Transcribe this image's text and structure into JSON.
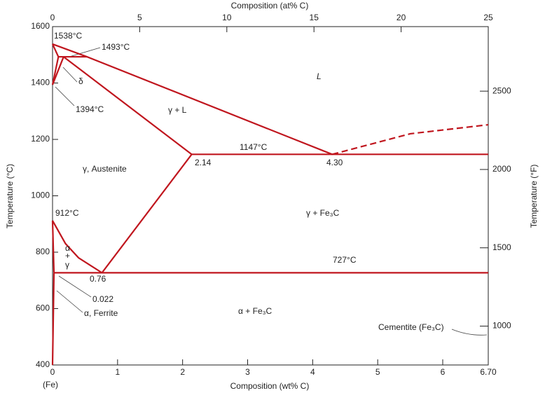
{
  "chart_data": {
    "type": "phase-diagram",
    "xlabel": "Composition (wt% C)",
    "x_origin_label": "(Fe)",
    "x2label": "Composition (at% C)",
    "ylabel": "Temperature (°C)",
    "y2label": "Temperature (°F)",
    "xlim": [
      0,
      6.7
    ],
    "xticks": [
      0,
      1,
      2,
      3,
      4,
      5,
      6,
      {
        "value": 6.7,
        "label": "6.70"
      }
    ],
    "x2lim": [
      0,
      25
    ],
    "x2ticks": [
      0,
      5,
      10,
      15,
      20,
      25
    ],
    "ylim": [
      400,
      1600
    ],
    "yticks": [
      400,
      600,
      800,
      1000,
      1200,
      1400,
      1600
    ],
    "y2lim": [
      752,
      2912
    ],
    "y2ticks": [
      1000,
      1500,
      2000,
      2500
    ],
    "color": "#c0161e",
    "series": [
      {
        "x": [
          0,
          0.53,
          4.3
        ],
        "values": [
          1538,
          1493,
          1147
        ]
      },
      {
        "x": [
          0,
          0.09
        ],
        "values": [
          1538,
          1493
        ]
      },
      {
        "x": [
          0.09,
          0.53
        ],
        "values": [
          1493,
          1493
        ]
      },
      {
        "x": [
          0,
          0.09
        ],
        "values": [
          1394,
          1493
        ]
      },
      {
        "x": [
          0,
          0.17
        ],
        "values": [
          1394,
          1493
        ]
      },
      {
        "x": [
          0.17,
          2.14
        ],
        "values": [
          1493,
          1147
        ]
      },
      {
        "x": [
          2.14,
          6.7
        ],
        "values": [
          1147,
          1147
        ]
      },
      {
        "x": [
          2.14,
          0.76
        ],
        "values": [
          1147,
          727
        ]
      },
      {
        "x": [
          0,
          0.2,
          0.4,
          0.76
        ],
        "values": [
          912,
          830,
          780,
          727
        ]
      },
      {
        "x": [
          0,
          0.022
        ],
        "values": [
          912,
          727
        ]
      },
      {
        "x": [
          0.022,
          6.7
        ],
        "values": [
          727,
          727
        ]
      },
      {
        "x": [
          0.022,
          0
        ],
        "values": [
          727,
          400
        ]
      },
      {
        "x": [
          4.3,
          5.5,
          6.7
        ],
        "values": [
          1147,
          1220,
          1252
        ],
        "dashed": true
      }
    ],
    "annotations": [
      "1538°C",
      "1493°C",
      "1394°C",
      "δ",
      "L",
      "γ + L",
      "1147°C",
      "2.14",
      "4.30",
      "γ, Austenite",
      "912°C",
      "γ + Fe₃C",
      "α",
      "+",
      "γ",
      "727°C",
      "0.76",
      "0.022",
      "α, Ferrite",
      "α + Fe₃C",
      "Cementite (Fe₃C)"
    ]
  }
}
